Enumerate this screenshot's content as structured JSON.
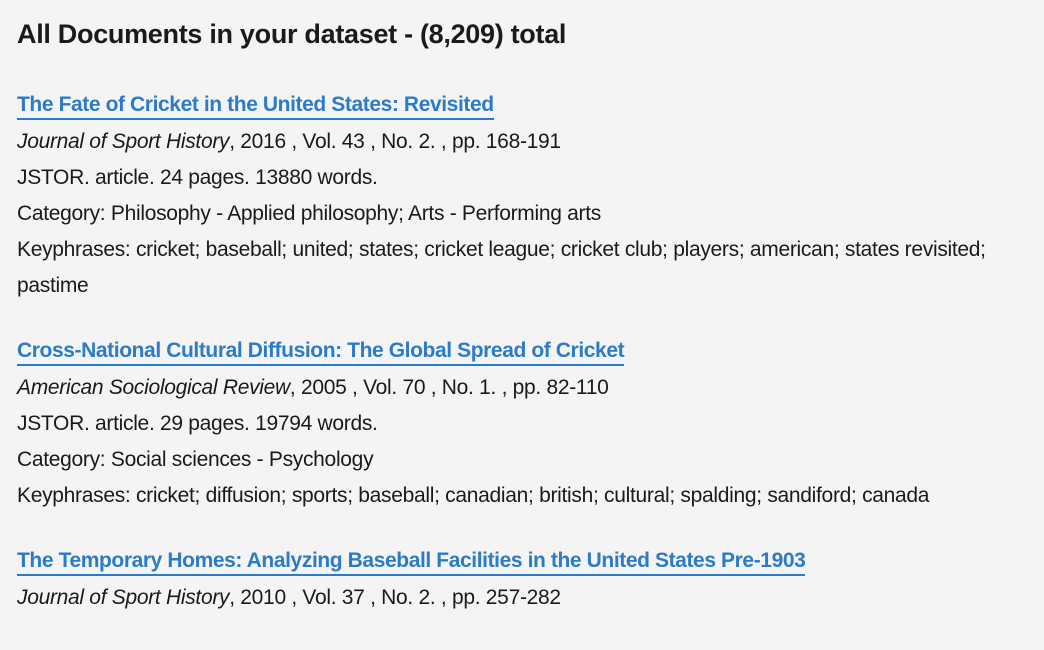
{
  "header": {
    "title": "All Documents in your dataset - (8,209) total"
  },
  "documents": [
    {
      "title": "The Fate of Cricket in the United States: Revisited",
      "journal": "Journal of Sport History",
      "citation": ", 2016 , Vol. 43 , No. 2. , pp. 168-191",
      "source": "JSTOR. article. 24 pages. 13880 words.",
      "category": "Category: Philosophy - Applied philosophy; Arts - Performing arts",
      "keyphrases": "Keyphrases: cricket; baseball; united; states; cricket league; cricket club; players; american; states revisited; pastime"
    },
    {
      "title": "Cross-National Cultural Diffusion: The Global Spread of Cricket",
      "journal": "American Sociological Review",
      "citation": ", 2005 , Vol. 70 , No. 1. , pp. 82-110",
      "source": "JSTOR. article. 29 pages. 19794 words.",
      "category": "Category: Social sciences - Psychology",
      "keyphrases": "Keyphrases: cricket; diffusion; sports; baseball; canadian; british; cultural; spalding; sandiford; canada"
    },
    {
      "title": "The Temporary Homes: Analyzing Baseball Facilities in the United States Pre-1903",
      "journal": "Journal of Sport History",
      "citation": ", 2010 , Vol. 37 , No. 2. , pp. 257-282"
    }
  ],
  "colors": {
    "link": "#2b7bc9",
    "text": "#1a1a1a",
    "background": "#f4f4f4"
  }
}
